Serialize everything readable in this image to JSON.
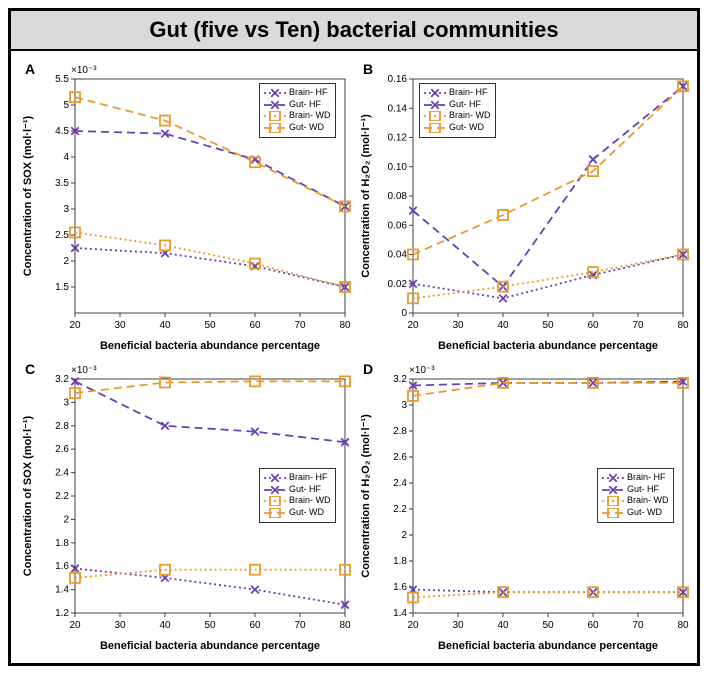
{
  "title": "Gut (five vs Ten) bacterial communities",
  "palette": {
    "brain_hf": "#6a3fb5",
    "gut_hf": "#6a3fb5",
    "brain_wd": "#e89b2a",
    "gut_wd": "#e89b2a",
    "axis": "#333333",
    "box": "#404040",
    "grid": "#ffffff",
    "bg": "#ffffff"
  },
  "series_style": {
    "brain_hf": {
      "dash": "2,3",
      "marker": "x",
      "color_key": "brain_hf"
    },
    "gut_hf": {
      "dash": "8,5",
      "marker": "x",
      "color_key": "gut_hf"
    },
    "brain_wd": {
      "dash": "2,3",
      "marker": "square",
      "color_key": "brain_wd"
    },
    "gut_wd": {
      "dash": "8,5",
      "marker": "square",
      "color_key": "gut_wd"
    }
  },
  "legend_labels": {
    "brain_hf": "Brain- HF",
    "gut_hf": "Gut- HF",
    "brain_wd": "Brain- WD",
    "gut_wd": "Gut- WD"
  },
  "xlabel": "Beneficial bacteria abundance percentage",
  "x_values": [
    20,
    40,
    60,
    80
  ],
  "x_ticks": [
    20,
    30,
    40,
    50,
    60,
    70,
    80
  ],
  "panels": {
    "A": {
      "ylabel": "Concentration of SOX (mol·l⁻¹)",
      "yexp_text": "×10⁻³",
      "ylim": [
        1.0,
        5.5
      ],
      "yticks": [
        1.5,
        2,
        2.5,
        3,
        3.5,
        4,
        4.5,
        5,
        5.5
      ],
      "legend_pos": "top-right",
      "data": {
        "brain_hf": [
          2.25,
          2.15,
          1.9,
          1.5
        ],
        "gut_hf": [
          4.5,
          4.45,
          3.95,
          3.05
        ],
        "brain_wd": [
          2.55,
          2.3,
          1.95,
          1.5
        ],
        "gut_wd": [
          5.15,
          4.7,
          3.9,
          3.05
        ]
      }
    },
    "B": {
      "ylabel": "Concentration of H₂O₂ (mol·l⁻¹)",
      "yexp_text": "",
      "ylim": [
        0,
        0.16
      ],
      "yticks": [
        0,
        0.02,
        0.04,
        0.06,
        0.08,
        0.1,
        0.12,
        0.14,
        0.16
      ],
      "legend_pos": "top-left",
      "data": {
        "brain_hf": [
          0.02,
          0.01,
          0.026,
          0.04
        ],
        "gut_hf": [
          0.07,
          0.018,
          0.105,
          0.155
        ],
        "brain_wd": [
          0.01,
          0.018,
          0.028,
          0.04
        ],
        "gut_wd": [
          0.04,
          0.067,
          0.097,
          0.155
        ]
      }
    },
    "C": {
      "ylabel": "Concentration of SOX (mol·l⁻¹)",
      "yexp_text": "×10⁻³",
      "ylim": [
        1.2,
        3.2
      ],
      "yticks": [
        1.2,
        1.4,
        1.6,
        1.8,
        2,
        2.2,
        2.4,
        2.6,
        2.8,
        3,
        3.2
      ],
      "legend_pos": "mid-right",
      "data": {
        "brain_hf": [
          1.58,
          1.5,
          1.4,
          1.27
        ],
        "gut_hf": [
          3.18,
          2.8,
          2.75,
          2.66
        ],
        "brain_wd": [
          1.5,
          1.57,
          1.57,
          1.57
        ],
        "gut_wd": [
          3.08,
          3.17,
          3.18,
          3.18
        ]
      }
    },
    "D": {
      "ylabel": "Concentration of H₂O₂ (mol·l⁻¹)",
      "yexp_text": "×10⁻³",
      "ylim": [
        1.4,
        3.2
      ],
      "yticks": [
        1.4,
        1.6,
        1.8,
        2,
        2.2,
        2.4,
        2.6,
        2.8,
        3,
        3.2
      ],
      "legend_pos": "mid-right",
      "data": {
        "brain_hf": [
          1.58,
          1.56,
          1.56,
          1.56
        ],
        "gut_hf": [
          3.15,
          3.17,
          3.17,
          3.18
        ],
        "brain_wd": [
          1.52,
          1.56,
          1.56,
          1.56
        ],
        "gut_wd": [
          3.07,
          3.17,
          3.17,
          3.17
        ]
      }
    }
  },
  "fontsize": {
    "title": 22,
    "panel_label": 14,
    "axis_label": 11,
    "tick": 10,
    "legend": 9,
    "exp": 10
  },
  "line_width": 1.8,
  "marker_size": 5
}
